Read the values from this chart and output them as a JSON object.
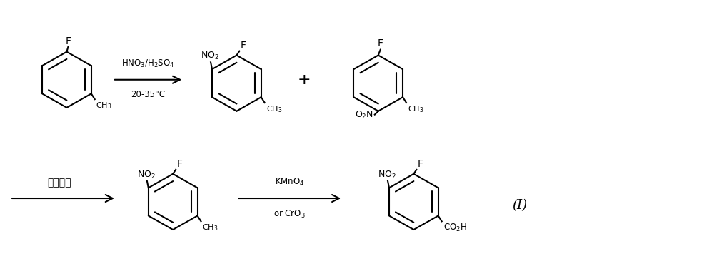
{
  "bg_color": "#ffffff",
  "line_color": "#000000",
  "figsize": [
    10.0,
    3.8
  ],
  "dpi": 100,
  "arrow1_top": "HNO$_3$/H$_2$SO$_4$",
  "arrow1_bot": "20-35°C",
  "arrow2_label": "减压精馏",
  "arrow3_top": "KMnO$_4$",
  "arrow3_bot": "or CrO$_3$",
  "plus": "+",
  "label_I": "(Ⅰ)"
}
